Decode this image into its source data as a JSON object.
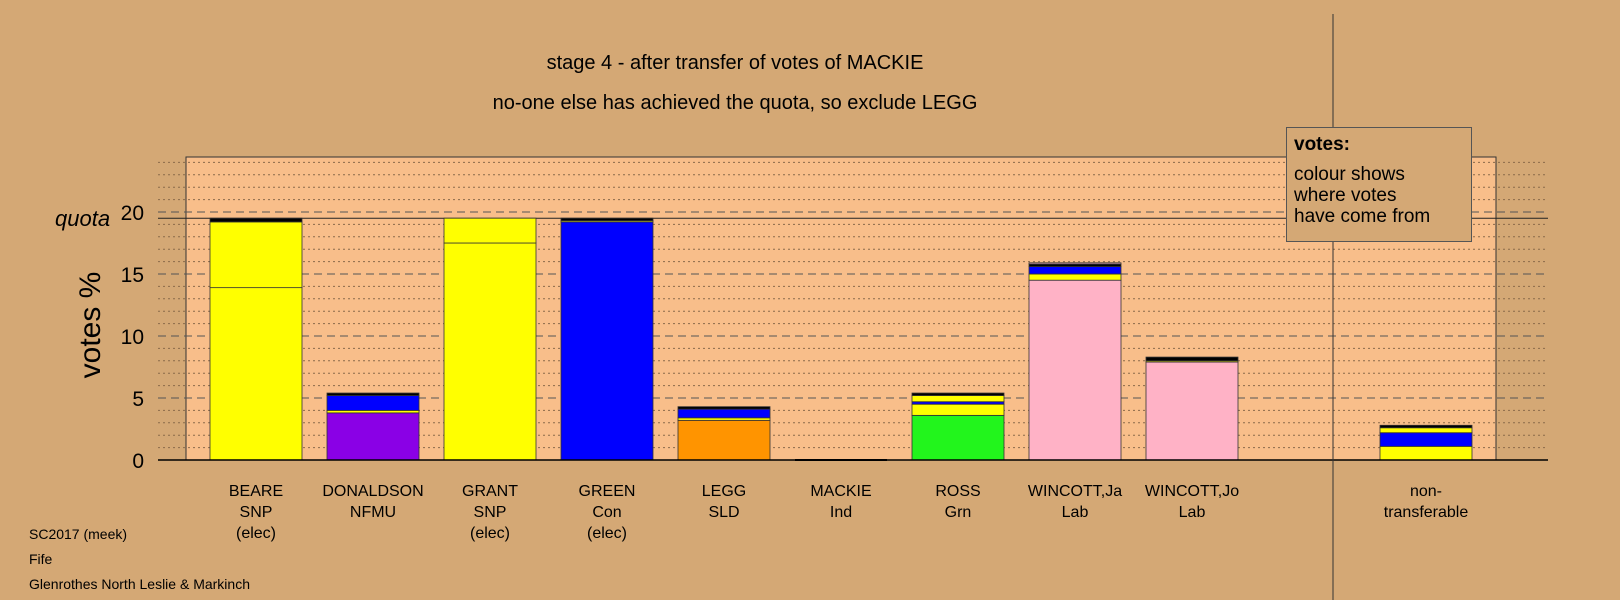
{
  "title_line1": "stage 4 - after transfer of votes of MACKIE",
  "title_line2": "no-one else has achieved the quota, so exclude LEGG",
  "legend": {
    "heading": "votes:",
    "lines": [
      "colour shows",
      "where votes",
      "have come from"
    ]
  },
  "footer": {
    "line1": "SC2017 (meek)",
    "line2": "Fife",
    "line3": "Glenrothes North Leslie & Markinch"
  },
  "colors": {
    "background": "#d4a875",
    "plot_area": "#f8be8a",
    "SNP": "#ffff00",
    "Con": "#0000ff",
    "NFMU": "#8a00e6",
    "SLD": "#ff9400",
    "Grn": "#22f51c",
    "Lab": "#ffb2c6",
    "Ind": "#000000"
  },
  "chart_data": {
    "type": "bar",
    "stacked": true,
    "ylabel": "votes %",
    "yticks": [
      0,
      5,
      10,
      15,
      20
    ],
    "ylim": [
      0,
      24.5
    ],
    "quota": 19.5,
    "quota_label": "quota",
    "grid": "dashed major, dotted minor",
    "categories": [
      {
        "name": "BEARE",
        "party": "SNP",
        "note": "(elec)",
        "segments": [
          {
            "from": "SNP",
            "value": 13.9,
            "color": "#ffff00"
          },
          {
            "from": "SNP",
            "value": 5.3,
            "color": "#ffff00"
          },
          {
            "from": "Ind",
            "value": 0.3,
            "color": "#000000"
          }
        ]
      },
      {
        "name": "DONALDSON",
        "party": "NFMU",
        "note": "",
        "segments": [
          {
            "from": "NFMU",
            "value": 3.8,
            "color": "#8a00e6"
          },
          {
            "from": "SNP",
            "value": 0.2,
            "color": "#ffff00"
          },
          {
            "from": "Con",
            "value": 1.2,
            "color": "#0000ff"
          },
          {
            "from": "Ind",
            "value": 0.2,
            "color": "#000000"
          }
        ]
      },
      {
        "name": "GRANT",
        "party": "SNP",
        "note": "(elec)",
        "segments": [
          {
            "from": "SNP",
            "value": 17.5,
            "color": "#ffff00"
          },
          {
            "from": "SNP",
            "value": 2.0,
            "color": "#ffff00"
          }
        ]
      },
      {
        "name": "GREEN",
        "party": "Con",
        "note": "(elec)",
        "segments": [
          {
            "from": "Con",
            "value": 19.2,
            "color": "#0000ff"
          },
          {
            "from": "SNP",
            "value": 0.1,
            "color": "#ffff00"
          },
          {
            "from": "Ind",
            "value": 0.2,
            "color": "#000000"
          }
        ]
      },
      {
        "name": "LEGG",
        "party": "SLD",
        "note": "",
        "segments": [
          {
            "from": "SLD",
            "value": 3.2,
            "color": "#ff9400"
          },
          {
            "from": "SNP",
            "value": 0.2,
            "color": "#ffff00"
          },
          {
            "from": "Con",
            "value": 0.7,
            "color": "#0000ff"
          },
          {
            "from": "Ind",
            "value": 0.2,
            "color": "#000000"
          }
        ]
      },
      {
        "name": "MACKIE",
        "party": "Ind",
        "note": "",
        "segments": []
      },
      {
        "name": "ROSS",
        "party": "Grn",
        "note": "",
        "segments": [
          {
            "from": "Grn",
            "value": 3.6,
            "color": "#22f51c"
          },
          {
            "from": "SNP",
            "value": 0.9,
            "color": "#ffff00"
          },
          {
            "from": "Con",
            "value": 0.2,
            "color": "#0000ff"
          },
          {
            "from": "SNP",
            "value": 0.5,
            "color": "#ffff00"
          },
          {
            "from": "Ind",
            "value": 0.2,
            "color": "#000000"
          }
        ]
      },
      {
        "name": "WINCOTT,Ja",
        "party": "Lab",
        "note": "",
        "segments": [
          {
            "from": "Lab",
            "value": 14.5,
            "color": "#ffb2c6"
          },
          {
            "from": "SNP",
            "value": 0.5,
            "color": "#ffff00"
          },
          {
            "from": "Con",
            "value": 0.6,
            "color": "#0000ff"
          },
          {
            "from": "Ind",
            "value": 0.2,
            "color": "#000000"
          },
          {
            "from": "Lab",
            "value": 0.1,
            "color": "#ffb2c6"
          }
        ]
      },
      {
        "name": "WINCOTT,Jo",
        "party": "Lab",
        "note": "",
        "segments": [
          {
            "from": "Lab",
            "value": 7.9,
            "color": "#ffb2c6"
          },
          {
            "from": "SNP",
            "value": 0.1,
            "color": "#ffff00"
          },
          {
            "from": "Ind",
            "value": 0.3,
            "color": "#000000"
          }
        ]
      },
      {
        "name": "non-",
        "party": "transferable",
        "note": "",
        "segments": [
          {
            "from": "SNP",
            "value": 1.1,
            "color": "#ffff00"
          },
          {
            "from": "Con",
            "value": 1.1,
            "color": "#0000ff"
          },
          {
            "from": "SNP",
            "value": 0.4,
            "color": "#ffff00"
          },
          {
            "from": "Ind",
            "value": 0.2,
            "color": "#000000"
          }
        ]
      }
    ]
  }
}
